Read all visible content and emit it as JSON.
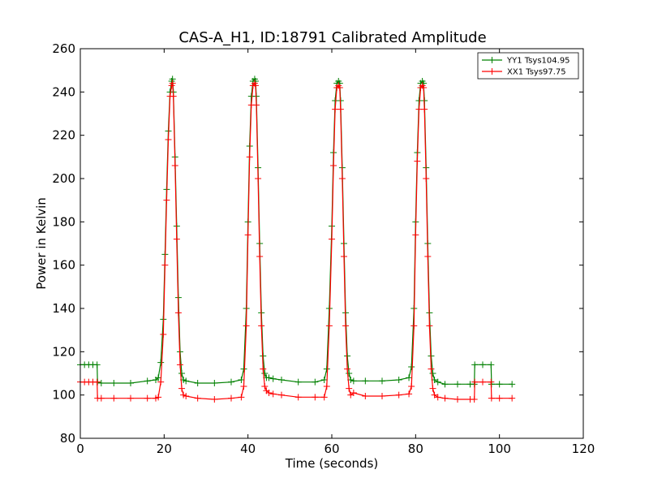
{
  "chart_data": {
    "type": "line",
    "title": "CAS-A_H1, ID:18791 Calibrated Amplitude",
    "xlabel": "Time (seconds)",
    "ylabel": "Power in Kelvin",
    "xlim": [
      0,
      120
    ],
    "ylim": [
      80,
      260
    ],
    "xticks": [
      0,
      20,
      40,
      60,
      80,
      100,
      120
    ],
    "yticks": [
      80,
      100,
      120,
      140,
      160,
      180,
      200,
      220,
      240,
      260
    ],
    "grid": false,
    "legend_position": "top-right",
    "marker": "plus",
    "series": [
      {
        "name": "YY1 Tsys104.95",
        "color": "#008000",
        "x": [
          0,
          1,
          2,
          3,
          4,
          4.1,
          5,
          8,
          12,
          16,
          18,
          18.6,
          19.2,
          19.8,
          20.2,
          20.6,
          21.0,
          21.4,
          21.8,
          22.0,
          22.2,
          22.6,
          23.0,
          23.4,
          23.8,
          24.2,
          24.6,
          25.2,
          28,
          32,
          36,
          38.4,
          39.0,
          39.6,
          40.0,
          40.4,
          40.8,
          41.2,
          41.6,
          41.8,
          42.0,
          42.4,
          42.8,
          43.2,
          43.6,
          44.0,
          44.4,
          45,
          46,
          48,
          52,
          56,
          58.2,
          58.8,
          59.4,
          60.0,
          60.4,
          60.8,
          61.2,
          61.6,
          61.9,
          62.1,
          62.5,
          62.9,
          63.3,
          63.7,
          64.1,
          64.5,
          65.2,
          68,
          72,
          76,
          78.4,
          79.0,
          79.6,
          80.0,
          80.4,
          80.8,
          81.2,
          81.6,
          81.9,
          82.1,
          82.5,
          82.9,
          83.3,
          83.7,
          84.1,
          84.5,
          85.3,
          87,
          90,
          93,
          94,
          94.1,
          96,
          98,
          98.1,
          100,
          103
        ],
        "y": [
          114,
          114,
          114,
          114,
          114,
          106,
          105.5,
          105.5,
          105.5,
          106.5,
          107,
          108,
          115,
          135,
          165,
          195,
          222,
          240,
          245,
          246,
          240,
          210,
          178,
          145,
          120,
          110,
          107,
          106.5,
          105.5,
          105.5,
          106,
          107,
          112,
          140,
          180,
          215,
          238,
          245,
          246,
          245,
          238,
          205,
          170,
          138,
          118,
          110,
          108,
          108,
          107.5,
          107,
          106,
          106,
          107,
          112,
          140,
          178,
          212,
          236,
          244,
          245,
          244,
          236,
          205,
          170,
          138,
          118,
          110,
          107,
          106.5,
          106.5,
          106.5,
          107,
          108,
          113,
          140,
          180,
          212,
          236,
          244,
          245,
          244,
          236,
          205,
          170,
          138,
          118,
          110,
          107,
          106,
          105,
          105,
          105,
          105,
          114,
          114,
          114,
          105,
          105,
          105
        ]
      },
      {
        "name": "XX1 Tsys97.75",
        "color": "#ff0000",
        "x": [
          0,
          1,
          2,
          3,
          4,
          4.1,
          5,
          8,
          12,
          16,
          18,
          18.6,
          19.2,
          19.8,
          20.2,
          20.6,
          21.0,
          21.4,
          21.8,
          22.0,
          22.2,
          22.6,
          23.0,
          23.4,
          23.8,
          24.2,
          24.6,
          25.2,
          28,
          32,
          36,
          38.4,
          39.0,
          39.6,
          40.0,
          40.4,
          40.8,
          41.2,
          41.6,
          41.8,
          42.0,
          42.4,
          42.8,
          43.2,
          43.6,
          44.0,
          44.4,
          45,
          46,
          48,
          52,
          56,
          58.2,
          58.8,
          59.4,
          60.0,
          60.4,
          60.8,
          61.2,
          61.6,
          61.9,
          62.1,
          62.5,
          62.9,
          63.3,
          63.7,
          64.1,
          64.5,
          65.2,
          68,
          72,
          76,
          78.4,
          79.0,
          79.6,
          80.0,
          80.4,
          80.8,
          81.2,
          81.6,
          81.9,
          82.1,
          82.5,
          82.9,
          83.3,
          83.7,
          84.1,
          84.5,
          85.3,
          87,
          90,
          93,
          94,
          94.1,
          96,
          98,
          98.1,
          100,
          103
        ],
        "y": [
          106,
          106,
          106,
          106,
          106,
          98.5,
          98.5,
          98.5,
          98.5,
          98.5,
          98.5,
          99,
          106,
          128,
          160,
          190,
          218,
          238,
          243,
          244,
          238,
          206,
          172,
          138,
          114,
          103,
          100,
          99.5,
          98.5,
          98,
          98.5,
          99,
          104,
          132,
          174,
          210,
          234,
          243,
          244,
          243,
          234,
          200,
          164,
          132,
          112,
          104,
          102,
          101,
          100.5,
          100,
          99,
          99,
          99,
          104,
          132,
          172,
          206,
          232,
          242,
          243,
          242,
          232,
          200,
          164,
          132,
          112,
          103,
          100,
          101,
          99.5,
          99.5,
          100,
          100.5,
          104,
          132,
          174,
          208,
          232,
          242,
          243,
          242,
          232,
          200,
          164,
          132,
          112,
          103,
          100,
          99,
          98.5,
          98,
          98,
          98,
          106,
          106,
          106,
          98.5,
          98.5,
          98.5
        ]
      }
    ]
  }
}
